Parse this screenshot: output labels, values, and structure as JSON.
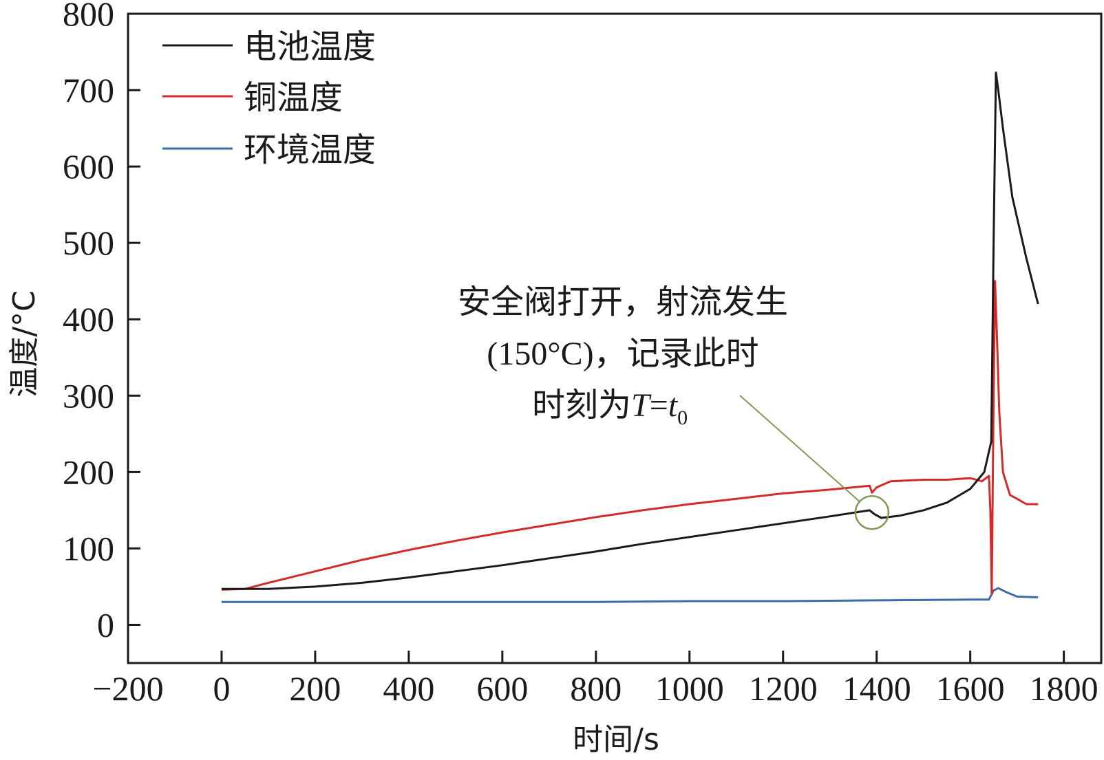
{
  "chart_data": {
    "type": "line",
    "xlabel": "时间/s",
    "ylabel": "温度/°C",
    "xlim": [
      -200,
      1880
    ],
    "ylim": [
      -50,
      800
    ],
    "xticks": [
      -200,
      0,
      200,
      400,
      600,
      800,
      1000,
      1200,
      1400,
      1600,
      1800
    ],
    "yticks": [
      0,
      100,
      200,
      300,
      400,
      500,
      600,
      700,
      800
    ],
    "x_tick_labels": [
      "−200",
      "0",
      "200",
      "400",
      "600",
      "800",
      "1000",
      "1200",
      "1400",
      "1600",
      "1800"
    ],
    "y_tick_labels": [
      "0",
      "100",
      "200",
      "300",
      "400",
      "500",
      "600",
      "700",
      "800"
    ],
    "legend_position": "top-left",
    "series": [
      {
        "name": "电池温度",
        "color": "#1a1a1a",
        "points": [
          [
            0,
            47
          ],
          [
            100,
            47
          ],
          [
            200,
            50
          ],
          [
            300,
            55
          ],
          [
            400,
            62
          ],
          [
            500,
            70
          ],
          [
            600,
            78
          ],
          [
            700,
            87
          ],
          [
            800,
            96
          ],
          [
            900,
            106
          ],
          [
            1000,
            115
          ],
          [
            1100,
            124
          ],
          [
            1200,
            133
          ],
          [
            1300,
            142
          ],
          [
            1385,
            150
          ],
          [
            1395,
            145
          ],
          [
            1410,
            140
          ],
          [
            1450,
            143
          ],
          [
            1500,
            150
          ],
          [
            1550,
            160
          ],
          [
            1600,
            178
          ],
          [
            1630,
            200
          ],
          [
            1645,
            240
          ],
          [
            1650,
            500
          ],
          [
            1655,
            723
          ],
          [
            1660,
            700
          ],
          [
            1670,
            650
          ],
          [
            1690,
            560
          ],
          [
            1720,
            480
          ],
          [
            1745,
            420
          ]
        ]
      },
      {
        "name": "铜温度",
        "color": "#d42a2a",
        "points": [
          [
            0,
            46
          ],
          [
            50,
            47
          ],
          [
            100,
            55
          ],
          [
            200,
            70
          ],
          [
            300,
            85
          ],
          [
            400,
            98
          ],
          [
            500,
            110
          ],
          [
            600,
            121
          ],
          [
            700,
            131
          ],
          [
            800,
            141
          ],
          [
            900,
            150
          ],
          [
            1000,
            158
          ],
          [
            1100,
            165
          ],
          [
            1200,
            172
          ],
          [
            1300,
            177
          ],
          [
            1385,
            182
          ],
          [
            1390,
            173
          ],
          [
            1400,
            180
          ],
          [
            1430,
            188
          ],
          [
            1500,
            190
          ],
          [
            1550,
            190
          ],
          [
            1600,
            192
          ],
          [
            1625,
            188
          ],
          [
            1640,
            195
          ],
          [
            1643,
            150
          ],
          [
            1646,
            40
          ],
          [
            1650,
            300
          ],
          [
            1653,
            450
          ],
          [
            1657,
            380
          ],
          [
            1662,
            280
          ],
          [
            1670,
            200
          ],
          [
            1685,
            170
          ],
          [
            1700,
            165
          ],
          [
            1720,
            158
          ],
          [
            1745,
            158
          ]
        ]
      },
      {
        "name": "环境温度",
        "color": "#3d6aa8",
        "points": [
          [
            0,
            30
          ],
          [
            200,
            30
          ],
          [
            400,
            30
          ],
          [
            600,
            30
          ],
          [
            800,
            30
          ],
          [
            1000,
            31
          ],
          [
            1200,
            31
          ],
          [
            1400,
            32
          ],
          [
            1600,
            33
          ],
          [
            1640,
            33
          ],
          [
            1650,
            45
          ],
          [
            1660,
            48
          ],
          [
            1680,
            42
          ],
          [
            1700,
            37
          ],
          [
            1745,
            36
          ]
        ]
      }
    ],
    "annotation": {
      "lines": [
        "安全阀打开，射流发生",
        "(150°C)，记录此时"
      ],
      "line3_prefix": "时刻为",
      "line3_var": "T",
      "line3_eq": "=",
      "line3_sub_base": "t",
      "line3_sub": "0",
      "target": [
        1390,
        147
      ],
      "leader_color": "#7f9a55"
    }
  }
}
